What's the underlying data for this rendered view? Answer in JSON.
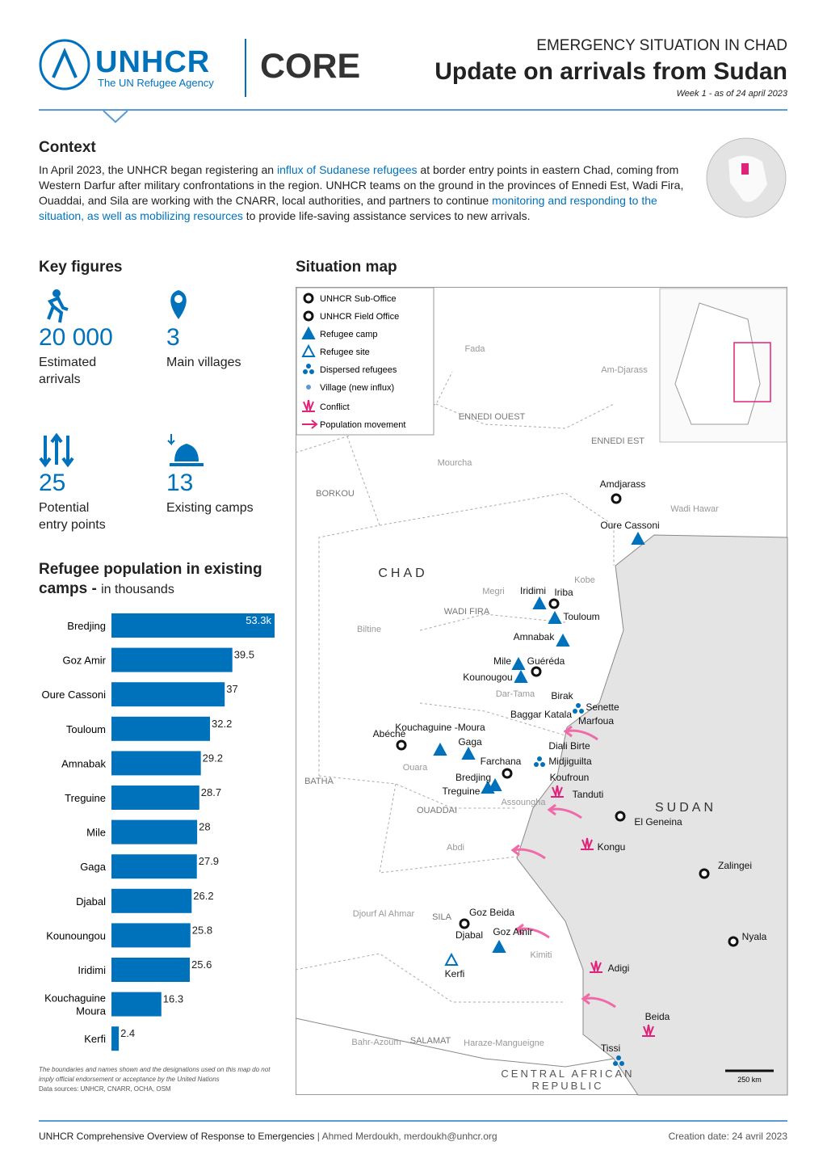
{
  "header": {
    "agency": "UNHCR",
    "agency_sub": "The UN Refugee Agency",
    "brand": "CORE",
    "kicker": "EMERGENCY SITUATION IN CHAD",
    "title": "Update on arrivals from Sudan",
    "date": "Week 1 - as of 24 april 2023"
  },
  "context": {
    "heading": "Context",
    "paragraph": [
      "In April 2023, the UNHCR began registering an ",
      "influx of Sudanese refugees",
      " at border entry points in eastern Chad, coming from Western Darfur after military confrontations in the region. UNHCR teams on the ground in the provinces of Ennedi Est, Wadi Fira, Ouaddai, and Sila are working with the CNARR, local authorities, and partners to continue ",
      "monitoring and responding to the situation, as well as mobilizing resources",
      " to provide life-saving assistance services to new arrivals."
    ]
  },
  "key_figures": {
    "heading": "Key figures",
    "items": [
      {
        "value": "20 000",
        "label": "Estimated arrivals"
      },
      {
        "value": "3",
        "label": "Main villages"
      },
      {
        "value": "25",
        "label": "Potential entry points"
      },
      {
        "value": "13",
        "label": "Existing camps"
      }
    ]
  },
  "chart_data": {
    "type": "bar",
    "orientation": "horizontal",
    "title": "Refugee population in existing camps - ",
    "subtitle": "in thousands",
    "color": "#0072bc",
    "categories": [
      "Bredjing",
      "Goz Amir",
      "Oure Cassoni",
      "Touloum",
      "Amnabak",
      "Treguine",
      "Mile",
      "Gaga",
      "Djabal",
      "Kounoungou",
      "Iridimi",
      "Kouchaguine Moura",
      "Kerfi"
    ],
    "values": [
      53.3,
      39.5,
      37,
      32.2,
      29.2,
      28.7,
      28,
      27.9,
      26.2,
      25.8,
      25.6,
      16.3,
      2.4
    ],
    "value_labels": [
      "53.3k",
      "39.5",
      "37",
      "32.2",
      "29.2",
      "28.7",
      "28",
      "27.9",
      "26.2",
      "25.8",
      "25.6",
      "16.3",
      "2.4"
    ]
  },
  "map": {
    "heading": "Situation map",
    "legend": [
      "UNHCR Sub-Office",
      "UNHCR Field Office",
      "Refugee camp",
      "Refugee site",
      "Dispersed refugees",
      "Village (new influx)",
      "Conflict",
      "Population movement"
    ],
    "labels": [
      "Fada",
      "Am-Djarass",
      "ENNEDI OUEST",
      "ENNEDI EST",
      "Mourcha",
      "BORKOU",
      "Amdjarass",
      "Wadi Hawar",
      "Oure Cassoni",
      "CHAD",
      "Kobe",
      "Megri",
      "Iridimi",
      "Iriba",
      "WADI FIRA",
      "Touloum",
      "Biltine",
      "Amnabak",
      "Mile",
      "Guéréda",
      "Kounougou",
      "Dar-Tama",
      "Birak",
      "Senette",
      "Baggar Katala",
      "Marfoua",
      "Kouchaguine -Moura",
      "Abéché",
      "Gaga",
      "Diali Birte",
      "Farchana",
      "Ouara",
      "Midjiguilta",
      "BATHA",
      "Bredjing",
      "Koufroun",
      "Treguine",
      "Tanduti",
      "Assoungha",
      "SUDAN",
      "OUADDAI",
      "El Geneina",
      "Abdi",
      "Kongu",
      "Zalingei",
      "Djourf Al Ahmar",
      "SILA",
      "Goz Beida",
      "Djabal",
      "Goz Amir",
      "Nyala",
      "Kimiti",
      "Adigi",
      "Kerfi",
      "Beida",
      "Bahr-Azoum",
      "SALAMAT",
      "Haraze-Mangueigne",
      "Tissi",
      "CENTRAL AFRICAN",
      "REPUBLIC"
    ],
    "scale": "250 km"
  },
  "notes": {
    "disclaimer": "The boundaries and names shown and the designations used on this map do not imply official endorsement or acceptance by the United Nations",
    "sources": "Data sources: UNHCR, CNARR, OCHA, OSM"
  },
  "footer": {
    "left": "UNHCR Comprehensive Overview of Response to Emergencies",
    "contact": " | Ahmed Merdoukh, merdoukh@unhcr.org",
    "right": "Creation date: 24 avril 2023"
  }
}
